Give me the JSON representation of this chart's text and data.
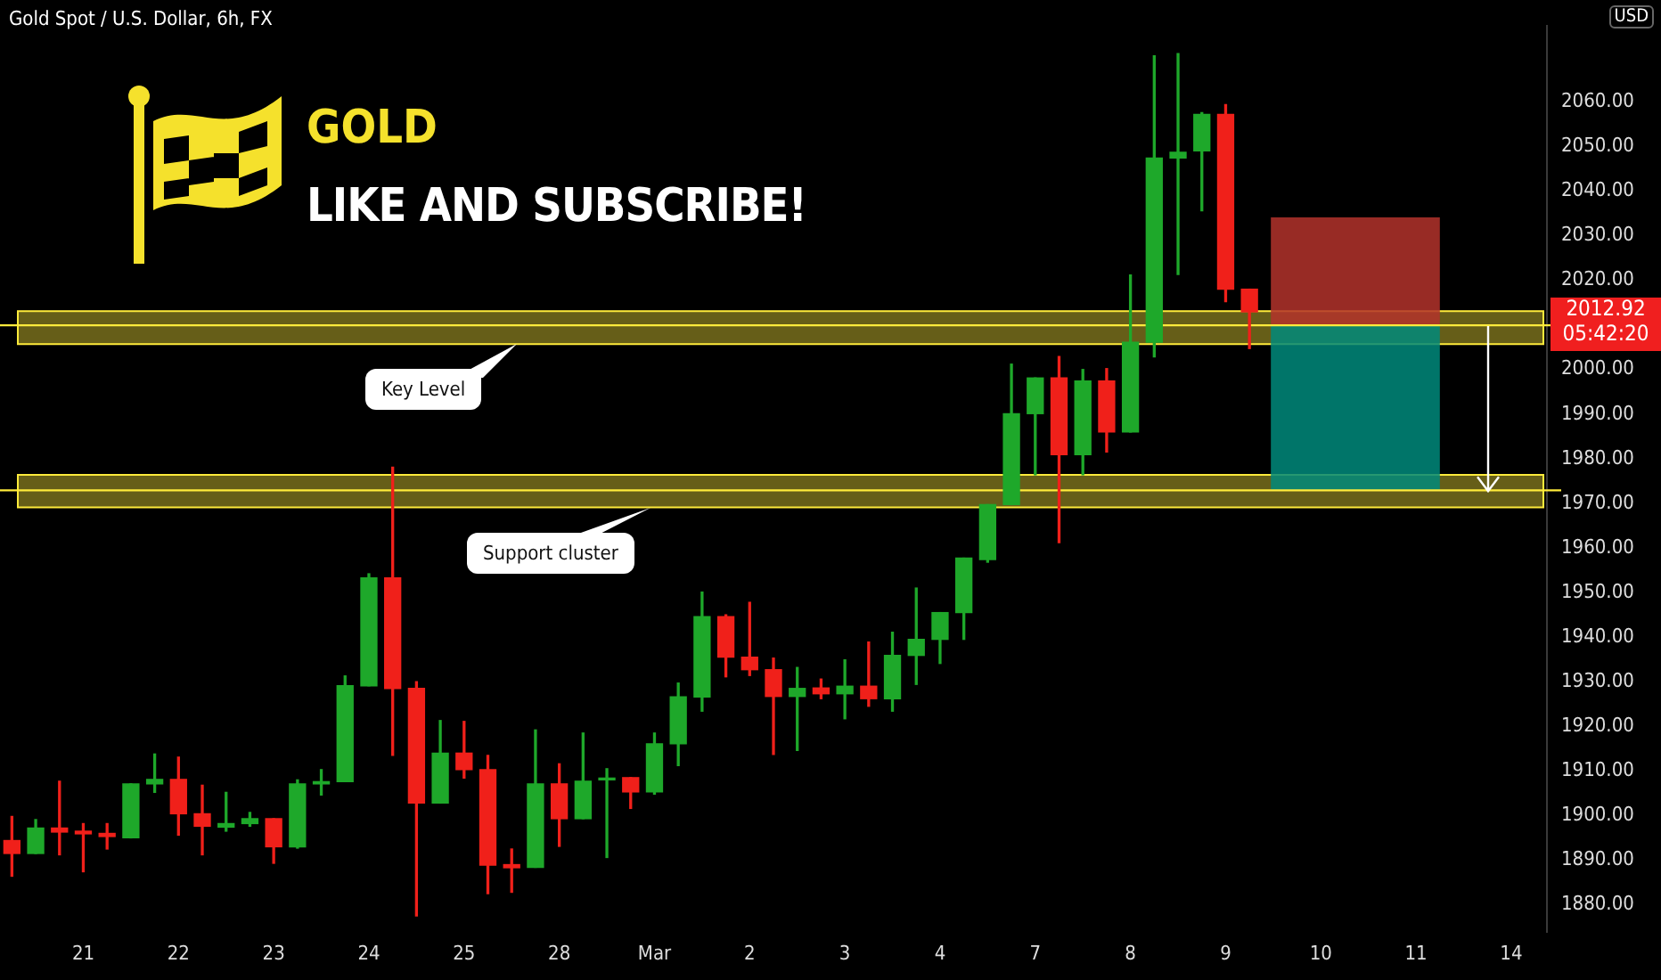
{
  "chart_data": {
    "type": "candlestick",
    "title": "Gold Spot / U.S. Dollar, 6h, FX",
    "ylabel": "USD",
    "categories": [
      null,
      null,
      null,
      "21",
      null,
      null,
      null,
      "22",
      null,
      null,
      null,
      "23",
      null,
      null,
      null,
      "24",
      null,
      null,
      null,
      "25",
      null,
      null,
      null,
      "28",
      null,
      null,
      null,
      "Mar",
      null,
      null,
      null,
      "2",
      null,
      null,
      null,
      "3",
      null,
      null,
      null,
      "4",
      null,
      null,
      null,
      "7",
      null,
      null,
      null,
      "8",
      null,
      null,
      null,
      "9",
      null,
      null,
      null,
      "10",
      null,
      null,
      null,
      "11",
      null,
      null,
      null,
      "14",
      null
    ],
    "ohlc": [
      [
        1894.4,
        1899.8,
        1886.4,
        1891.5
      ],
      [
        1891.5,
        1899.1,
        1891.5,
        1897.2
      ],
      [
        1897.2,
        1907.7,
        1891.2,
        1896.3
      ],
      [
        1896.5,
        1898.2,
        1887.4,
        1895.9
      ],
      [
        1896.0,
        1898.2,
        1892.5,
        1895.3
      ],
      [
        1895.0,
        1907.1,
        1895.0,
        1907.1
      ],
      [
        1907.1,
        1913.8,
        1905.2,
        1908.1
      ],
      [
        1908.1,
        1913.1,
        1895.6,
        1900.4
      ],
      [
        1900.4,
        1906.8,
        1891.2,
        1897.6
      ],
      [
        1897.4,
        1905.2,
        1896.5,
        1898.2
      ],
      [
        1898.2,
        1900.7,
        1897.6,
        1899.3
      ],
      [
        1899.3,
        1899.3,
        1889.3,
        1893.0
      ],
      [
        1893.0,
        1908.0,
        1892.7,
        1907.1
      ],
      [
        1907.1,
        1910.3,
        1904.6,
        1907.6
      ],
      [
        1907.6,
        1931.3,
        1907.6,
        1929.1
      ],
      [
        1929.1,
        1954.2,
        1929.1,
        1953.3
      ],
      [
        1953.3,
        1978.1,
        1913.5,
        1928.5
      ],
      [
        1928.5,
        1930.0,
        1877.5,
        1902.8
      ],
      [
        1902.8,
        1921.3,
        1902.8,
        1914.0
      ],
      [
        1914.0,
        1921.1,
        1908.4,
        1910.3
      ],
      [
        1910.3,
        1913.5,
        1882.5,
        1888.9
      ],
      [
        1889.0,
        1892.5,
        1882.8,
        1888.3
      ],
      [
        1888.4,
        1919.2,
        1888.4,
        1907.1
      ],
      [
        1907.1,
        1911.6,
        1893.1,
        1899.3
      ],
      [
        1899.3,
        1918.5,
        1899.3,
        1907.7
      ],
      [
        1908.0,
        1910.5,
        1890.6,
        1908.4
      ],
      [
        1908.5,
        1908.5,
        1901.6,
        1905.3
      ],
      [
        1905.3,
        1918.5,
        1904.8,
        1916.1
      ],
      [
        1916.1,
        1929.7,
        1911.2,
        1926.6
      ],
      [
        1926.6,
        1950.1,
        1923.4,
        1944.6
      ],
      [
        1944.6,
        1945.0,
        1931.1,
        1935.5
      ],
      [
        1935.5,
        1947.8,
        1931.4,
        1932.7
      ],
      [
        1932.7,
        1935.3,
        1913.7,
        1926.7
      ],
      [
        1926.7,
        1933.2,
        1914.6,
        1928.5
      ],
      [
        1928.6,
        1930.6,
        1926.2,
        1927.3
      ],
      [
        1927.3,
        1934.9,
        1921.7,
        1929.0
      ],
      [
        1929.0,
        1938.9,
        1924.5,
        1926.2
      ],
      [
        1926.2,
        1941.1,
        1923.4,
        1935.9
      ],
      [
        1935.9,
        1951.0,
        1929.4,
        1939.5
      ],
      [
        1939.5,
        1945.5,
        1934.1,
        1945.5
      ],
      [
        1945.5,
        1957.7,
        1939.5,
        1957.7
      ],
      [
        1957.4,
        1969.7,
        1956.8,
        1969.7
      ],
      [
        1969.7,
        2001.2,
        1969.7,
        1990.1
      ],
      [
        1990.1,
        1998.1,
        1976.4,
        1998.1
      ],
      [
        1998.1,
        2002.9,
        1961.2,
        1980.9
      ],
      [
        1980.9,
        2000.0,
        1976.4,
        1997.4
      ],
      [
        1997.4,
        2000.2,
        1981.5,
        1986.0
      ],
      [
        1986.0,
        2021.2,
        1986.0,
        2006.1
      ],
      [
        2006.1,
        2070.3,
        2002.8,
        2047.4
      ],
      [
        2047.4,
        2070.8,
        2021.3,
        2048.7
      ],
      [
        2049.0,
        2057.6,
        2035.6,
        2057.2
      ],
      [
        2057.2,
        2059.4,
        2015.2,
        2018.0
      ],
      [
        2018.0,
        2018.0,
        2004.7,
        2012.92
      ],
      null,
      null,
      null,
      null,
      null,
      null,
      null,
      null,
      null,
      null,
      null,
      null
    ],
    "colors": [
      "#f0201a",
      "#1ea82a",
      "#f0201a",
      "#f0201a",
      "#f0201a",
      "#1ea82a",
      "#1ea82a",
      "#f0201a",
      "#f0201a",
      "#1ea82a",
      "#1ea82a",
      "#f0201a",
      "#1ea82a",
      "#1ea82a",
      "#1ea82a",
      "#1ea82a",
      "#f0201a",
      "#f0201a",
      "#1ea82a",
      "#f0201a",
      "#f0201a",
      "#f0201a",
      "#1ea82a",
      "#f0201a",
      "#1ea82a",
      "#1ea82a",
      "#f0201a",
      "#1ea82a",
      "#1ea82a",
      "#1ea82a",
      "#f0201a",
      "#f0201a",
      "#f0201a",
      "#1ea82a",
      "#f0201a",
      "#1ea82a",
      "#f0201a",
      "#1ea82a",
      "#1ea82a",
      "#1ea82a",
      "#1ea82a",
      "#1ea82a",
      "#1ea82a",
      "#1ea82a",
      "#f0201a",
      "#1ea82a",
      "#f0201a",
      "#1ea82a",
      "#1ea82a",
      "#1ea82a",
      "#1ea82a",
      "#f0201a",
      "#f0201a",
      null,
      null,
      null,
      null,
      null,
      null,
      null,
      null,
      null,
      null,
      null,
      null
    ],
    "ylim": [
      1874,
      2077
    ],
    "yticks": [
      {
        "value": 1880,
        "label": "1880.00"
      },
      {
        "value": 1890,
        "label": "1890.00"
      },
      {
        "value": 1900,
        "label": "1900.00"
      },
      {
        "value": 1910,
        "label": "1910.00"
      },
      {
        "value": 1920,
        "label": "1920.00"
      },
      {
        "value": 1930,
        "label": "1930.00"
      },
      {
        "value": 1940,
        "label": "1940.00"
      },
      {
        "value": 1950,
        "label": "1950.00"
      },
      {
        "value": 1960,
        "label": "1960.00"
      },
      {
        "value": 1970,
        "label": "1970.00"
      },
      {
        "value": 1980,
        "label": "1980.00"
      },
      {
        "value": 1990,
        "label": "1990.00"
      },
      {
        "value": 2000,
        "label": "2000.00"
      },
      {
        "value": 2010,
        "label": null
      },
      {
        "value": 2020,
        "label": "2020.00"
      },
      {
        "value": 2030,
        "label": "2030.00"
      },
      {
        "value": 2040,
        "label": "2040.00"
      },
      {
        "value": 2050,
        "label": "2050.00"
      },
      {
        "value": 2060,
        "label": "2060.00"
      }
    ],
    "bands": [
      {
        "axis": "y",
        "from": 2005.7,
        "to": 2013.1,
        "label": "Key Level",
        "color": "#ffeb3b"
      },
      {
        "axis": "y",
        "from": 1969.1,
        "to": 1976.4,
        "label": "Support cluster",
        "color": "#ffeb3b"
      },
      {
        "axis": "y",
        "from": 2009.9,
        "to": 2034.1,
        "color": "#b3332c"
      },
      {
        "axis": "y",
        "from": 1972.9,
        "to": 2009.9,
        "color": "#00897b"
      }
    ],
    "ref_lines": [
      {
        "axis": "y",
        "value": 2009.9,
        "color": "#ffeb3b"
      },
      {
        "axis": "y",
        "value": 1972.9,
        "color": "#ffeb3b"
      }
    ],
    "annotations": [
      "GOLD",
      "LIKE AND SUBSCRIBE!",
      "2012.92",
      "05:42:20"
    ],
    "grid": false,
    "legend": false
  }
}
